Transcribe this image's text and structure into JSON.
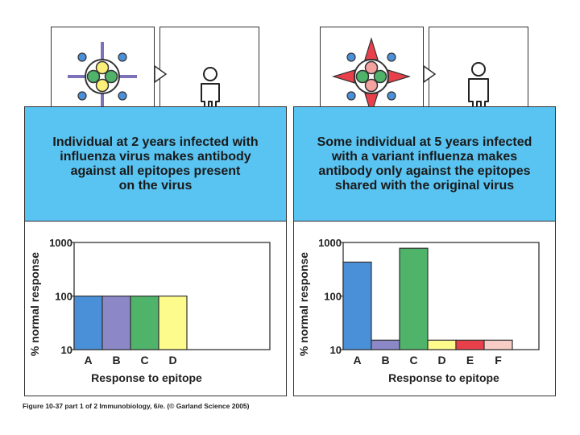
{
  "footer": {
    "caption": "Figure 10-37 part 1 of 2  Immunobiology, 6/e. (© Garland Science 2005)"
  },
  "colors": {
    "band": "#59c3f1",
    "A": "#4a90d9",
    "B": "#8c88c8",
    "C": "#4fb36a",
    "D": "#fdfb8c",
    "E": "#e8404b",
    "F": "#f7cdc6"
  },
  "panels": [
    {
      "caption": "Individual at 2 years infected with\ninfluenza virus makes antibody\nagainst all epitopes present\non the virus",
      "virus": "original-virus",
      "chart_data": {
        "type": "bar",
        "title": "",
        "xlabel": "Response to epitope",
        "ylabel": "% normal response",
        "yscale": "log",
        "ylim": [
          10,
          1000
        ],
        "ticks": [
          "10",
          "100",
          "1000"
        ],
        "categories": [
          "A",
          "B",
          "C",
          "D"
        ],
        "values": [
          100,
          100,
          100,
          100
        ],
        "bar_colors": [
          "#4a90d9",
          "#8c88c8",
          "#4fb36a",
          "#fdfb8c"
        ]
      }
    },
    {
      "caption": "Some individual at 5 years infected\nwith a variant influenza makes\nantibody only against the epitopes\nshared with the original virus",
      "virus": "variant-virus",
      "chart_data": {
        "type": "bar",
        "title": "",
        "xlabel": "Response to epitope",
        "ylabel": "% normal response",
        "yscale": "log",
        "ylim": [
          10,
          1000
        ],
        "ticks": [
          "10",
          "100",
          "1000"
        ],
        "categories": [
          "A",
          "B",
          "C",
          "D",
          "E",
          "F"
        ],
        "values": [
          430,
          15,
          780,
          15,
          15,
          15
        ],
        "bar_colors": [
          "#4a90d9",
          "#8c88c8",
          "#4fb36a",
          "#fdfb8c",
          "#e8404b",
          "#f7cdc6"
        ]
      }
    }
  ]
}
